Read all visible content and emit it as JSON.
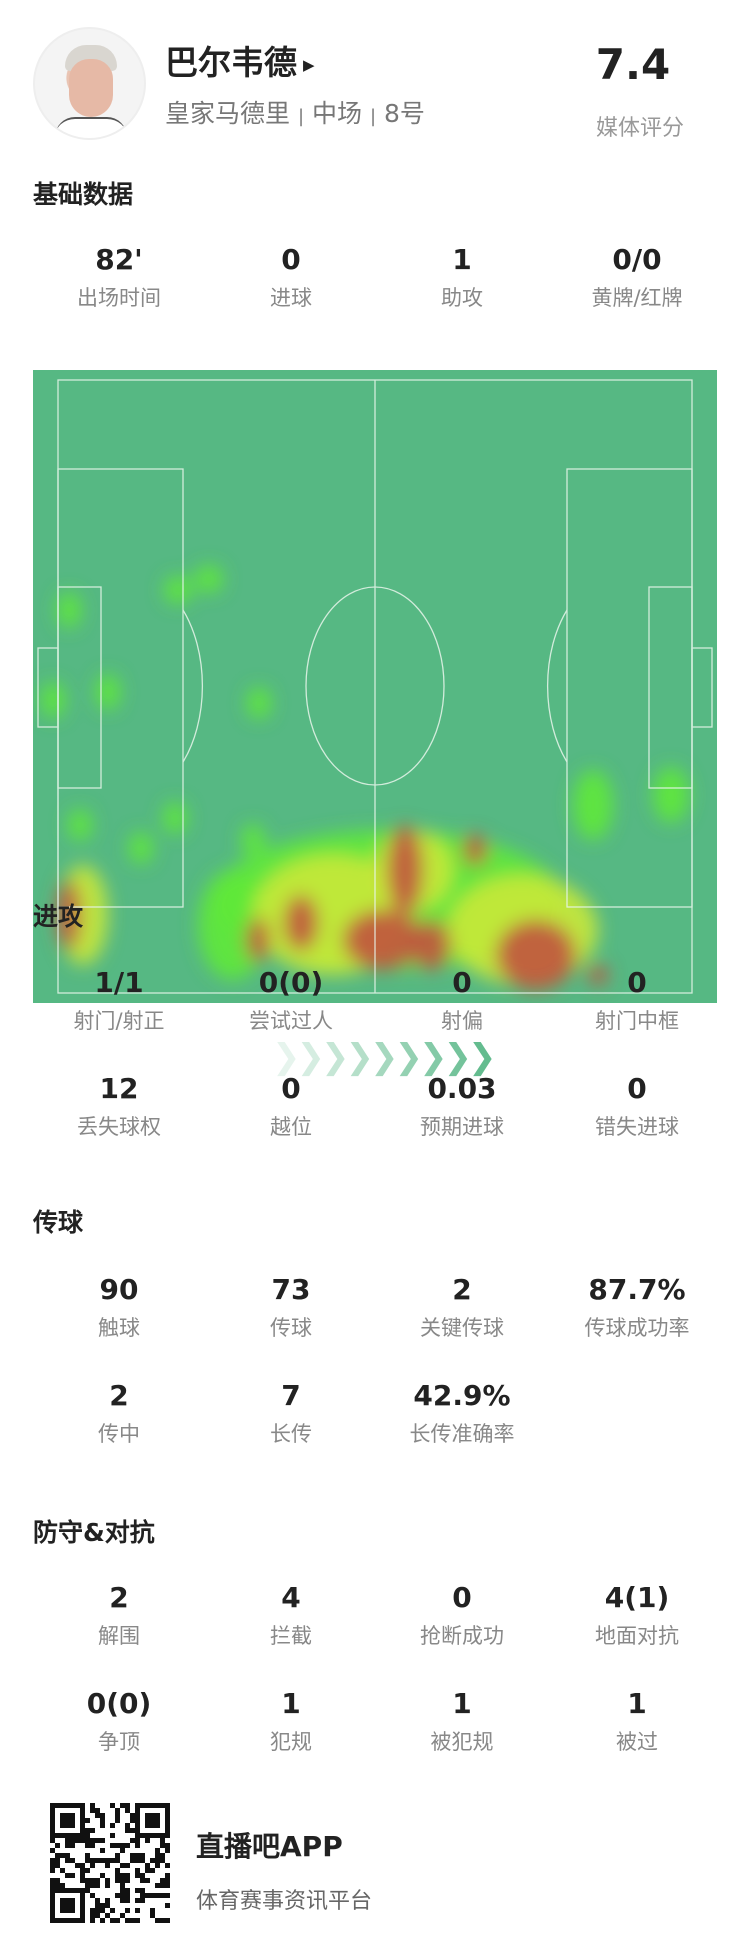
{
  "player": {
    "name": "巴尔韦德",
    "team": "皇家马德里",
    "position": "中场",
    "number": "8号",
    "rating": "7.4",
    "rating_label": "媒体评分"
  },
  "basic": {
    "title": "基础数据",
    "stats": [
      {
        "value": "82'",
        "label": "出场时间"
      },
      {
        "value": "0",
        "label": "进球"
      },
      {
        "value": "1",
        "label": "助攻"
      },
      {
        "value": "0/0",
        "label": "黄牌/红牌"
      }
    ]
  },
  "heatmap": {
    "colors": {
      "pitch": "#56b883",
      "low": "#5ee83a",
      "mid": "#c8e83a",
      "high": "#c0573f"
    },
    "direction": "attacking-right"
  },
  "attack": {
    "title": "进攻",
    "stats": [
      {
        "value": "1/1",
        "label": "射门/射正"
      },
      {
        "value": "0(0)",
        "label": "尝试过人"
      },
      {
        "value": "0",
        "label": "射偏"
      },
      {
        "value": "0",
        "label": "射门中框"
      },
      {
        "value": "12",
        "label": "丢失球权"
      },
      {
        "value": "0",
        "label": "越位"
      },
      {
        "value": "0.03",
        "label": "预期进球"
      },
      {
        "value": "0",
        "label": "错失进球"
      }
    ]
  },
  "passing": {
    "title": "传球",
    "stats": [
      {
        "value": "90",
        "label": "触球"
      },
      {
        "value": "73",
        "label": "传球"
      },
      {
        "value": "2",
        "label": "关键传球"
      },
      {
        "value": "87.7%",
        "label": "传球成功率"
      },
      {
        "value": "2",
        "label": "传中"
      },
      {
        "value": "7",
        "label": "长传"
      },
      {
        "value": "42.9%",
        "label": "长传准确率"
      }
    ]
  },
  "defense": {
    "title": "防守&对抗",
    "stats": [
      {
        "value": "2",
        "label": "解围"
      },
      {
        "value": "4",
        "label": "拦截"
      },
      {
        "value": "0",
        "label": "抢断成功"
      },
      {
        "value": "4(1)",
        "label": "地面对抗"
      },
      {
        "value": "0(0)",
        "label": "争顶"
      },
      {
        "value": "1",
        "label": "犯规"
      },
      {
        "value": "1",
        "label": "被犯规"
      },
      {
        "value": "1",
        "label": "被过"
      }
    ]
  },
  "footer": {
    "app_name": "直播吧APP",
    "tagline": "体育赛事资讯平台"
  }
}
